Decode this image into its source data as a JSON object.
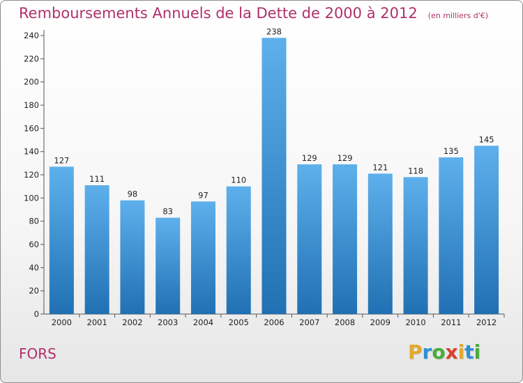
{
  "header": {
    "title": "Remboursements Annuels de la Dette de 2000 à 2012",
    "subtitle": "(en milliers d'€)"
  },
  "footer": {
    "city": "FORS",
    "brand": {
      "letters": [
        "P",
        "r",
        "o",
        "x",
        "i",
        "t",
        "i"
      ],
      "colors": [
        "#e4a82c",
        "#2e8fd4",
        "#47ad38",
        "#d9402f",
        "#e4a82c",
        "#2e8fd4",
        "#47ad38"
      ]
    }
  },
  "colors": {
    "bar_light": "#5eb0ec",
    "bar_dark": "#2070b3",
    "axis": "#555555",
    "grid_tick": "#555555"
  },
  "chart_data": {
    "type": "bar",
    "title": "Remboursements Annuels de la Dette de 2000 à 2012",
    "subtitle": "(en milliers d'€)",
    "xlabel": "",
    "ylabel": "",
    "categories": [
      "2000",
      "2001",
      "2002",
      "2003",
      "2004",
      "2005",
      "2006",
      "2007",
      "2008",
      "2009",
      "2010",
      "2011",
      "2012"
    ],
    "values": [
      127,
      111,
      98,
      83,
      97,
      110,
      238,
      129,
      129,
      121,
      118,
      135,
      145
    ],
    "ylim": [
      0,
      240
    ],
    "yticks": [
      0,
      20,
      40,
      60,
      80,
      100,
      120,
      140,
      160,
      180,
      200,
      220,
      240
    ],
    "grid": false,
    "legend": "none"
  }
}
